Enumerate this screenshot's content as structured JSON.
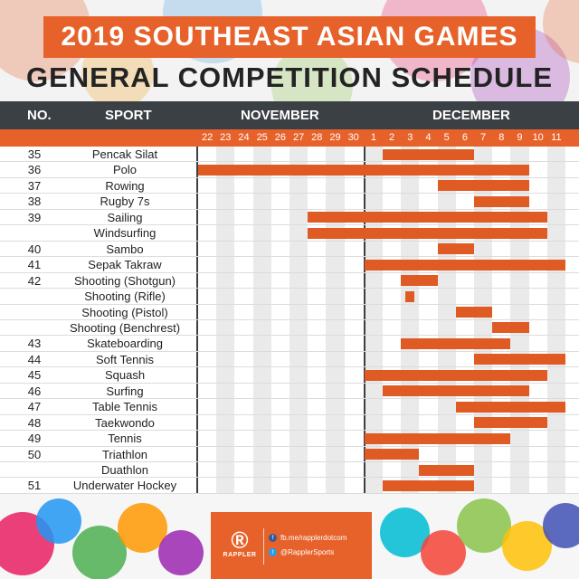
{
  "title": "2019 SOUTHEAST ASIAN GAMES",
  "subtitle": "GENERAL COMPETITION SCHEDULE",
  "header": {
    "no": "NO.",
    "sport": "SPORT",
    "november": "NOVEMBER",
    "december": "DECEMBER"
  },
  "days": [
    "22",
    "23",
    "24",
    "25",
    "26",
    "27",
    "28",
    "29",
    "30",
    "1",
    "2",
    "3",
    "4",
    "5",
    "6",
    "7",
    "8",
    "9",
    "10",
    "11"
  ],
  "rows": [
    {
      "no": "35",
      "sport": "Pencak Silat",
      "bars": [
        [
          10,
          14
        ]
      ]
    },
    {
      "no": "36",
      "sport": "Polo",
      "bars": [
        [
          0,
          17
        ]
      ]
    },
    {
      "no": "37",
      "sport": "Rowing",
      "bars": [
        [
          13,
          17
        ]
      ]
    },
    {
      "no": "38",
      "sport": "Rugby 7s",
      "bars": [
        [
          15,
          17
        ]
      ]
    },
    {
      "no": "39",
      "sport": "Sailing",
      "bars": [
        [
          6,
          18
        ]
      ]
    },
    {
      "no": "",
      "sport": "Windsurfing",
      "bars": [
        [
          6,
          18
        ]
      ]
    },
    {
      "no": "40",
      "sport": "Sambo",
      "bars": [
        [
          13,
          14
        ]
      ]
    },
    {
      "no": "41",
      "sport": "Sepak Takraw",
      "bars": [
        [
          9,
          19
        ]
      ]
    },
    {
      "no": "42",
      "sport": "Shooting (Shotgun)",
      "bars": [
        [
          11,
          12
        ]
      ]
    },
    {
      "no": "",
      "sport": "Shooting (Rifle)",
      "bars": [
        [
          11.25,
          11.75
        ]
      ]
    },
    {
      "no": "",
      "sport": "Shooting (Pistol)",
      "bars": [
        [
          14,
          15
        ]
      ]
    },
    {
      "no": "",
      "sport": "Shooting (Benchrest)",
      "bars": [
        [
          16,
          17
        ]
      ]
    },
    {
      "no": "43",
      "sport": "Skateboarding",
      "bars": [
        [
          11,
          16
        ]
      ]
    },
    {
      "no": "44",
      "sport": "Soft Tennis",
      "bars": [
        [
          15,
          19
        ]
      ]
    },
    {
      "no": "45",
      "sport": "Squash",
      "bars": [
        [
          9,
          18
        ]
      ]
    },
    {
      "no": "46",
      "sport": "Surfing",
      "bars": [
        [
          10,
          17
        ]
      ]
    },
    {
      "no": "47",
      "sport": "Table Tennis",
      "bars": [
        [
          14,
          19
        ]
      ]
    },
    {
      "no": "48",
      "sport": "Taekwondo",
      "bars": [
        [
          15,
          18
        ]
      ]
    },
    {
      "no": "49",
      "sport": "Tennis",
      "bars": [
        [
          9,
          16
        ]
      ]
    },
    {
      "no": "50",
      "sport": "Triathlon",
      "bars": [
        [
          9,
          11
        ]
      ]
    },
    {
      "no": "",
      "sport": "Duathlon",
      "bars": [
        [
          12,
          14
        ]
      ]
    },
    {
      "no": "51",
      "sport": "Underwater Hockey",
      "bars": [
        [
          10,
          14
        ]
      ]
    }
  ],
  "footer": {
    "brand": "RAPPLER",
    "facebook": "fb.me/rapplerdotcom",
    "twitter": "@RapplerSports",
    "logo_icon": "rappler-logo-icon",
    "fb_icon": "facebook-icon",
    "tw_icon": "twitter-icon"
  },
  "colors": {
    "accent": "#e7622a",
    "bar": "#e05a23",
    "header": "#3b4045"
  }
}
